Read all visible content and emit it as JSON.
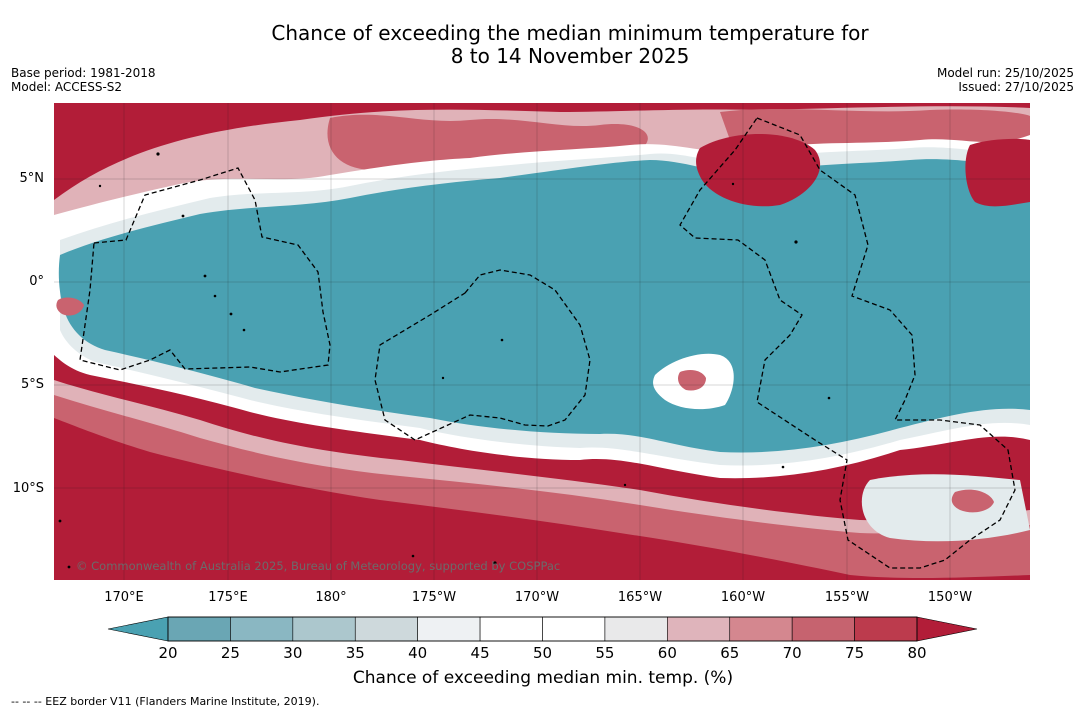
{
  "title": {
    "line1": "Chance of exceeding the median minimum temperature for",
    "line2": "8 to 14 November 2025"
  },
  "meta": {
    "base_period": "Base period: 1981-2018",
    "model": "Model: ACCESS-S2",
    "model_run": "Model run: 25/10/2025",
    "issued": "Issued: 27/10/2025"
  },
  "lat_labels": [
    "5°N",
    "0°",
    "5°S",
    "10°S"
  ],
  "lon_labels": [
    "170°E",
    "175°E",
    "180°",
    "175°W",
    "170°W",
    "165°W",
    "160°W",
    "155°W",
    "150°W"
  ],
  "copyright": "© Commonwealth of Australia 2025, Bureau of Meteorology, supported by COSPPac",
  "colorbar": {
    "ticks": [
      "20",
      "25",
      "30",
      "35",
      "40",
      "45",
      "50",
      "55",
      "60",
      "65",
      "70",
      "75",
      "80"
    ],
    "colors": [
      "#6aa6b4",
      "#8ab7c2",
      "#acc7cd",
      "#ced9dc",
      "#eef1f3",
      "#ffffff",
      "#ffffff",
      "#e9e9ea",
      "#dfb4bb",
      "#d4878f",
      "#c6636f",
      "#bc3b4d"
    ],
    "under_color": "#4aa1b2",
    "over_color": "#b21d38",
    "label": "Chance of exceeding median min. temp. (%)"
  },
  "colors": {
    "low": "#4aa1b2",
    "high": "#b21d38",
    "mid_high": "#c9636f",
    "light_high": "#e0b2b8",
    "neutral": "#ffffff",
    "light_low": "#e3ebed"
  },
  "footnote": "-- -- -- EEZ border V11 (Flanders Marine Institute, 2019)."
}
